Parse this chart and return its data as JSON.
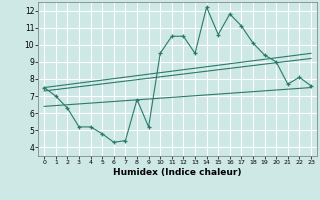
{
  "xlabel": "Humidex (Indice chaleur)",
  "bg_color": "#cde8e5",
  "line_color": "#2a7a6a",
  "grid_color": "#ffffff",
  "xlim": [
    -0.5,
    23.5
  ],
  "ylim": [
    3.5,
    12.5
  ],
  "xticks": [
    0,
    1,
    2,
    3,
    4,
    5,
    6,
    7,
    8,
    9,
    10,
    11,
    12,
    13,
    14,
    15,
    16,
    17,
    18,
    19,
    20,
    21,
    22,
    23
  ],
  "yticks": [
    4,
    5,
    6,
    7,
    8,
    9,
    10,
    11,
    12
  ],
  "main_line": {
    "x": [
      0,
      1,
      2,
      3,
      4,
      5,
      6,
      7,
      8,
      9,
      10,
      11,
      12,
      13,
      14,
      15,
      16,
      17,
      18,
      19,
      20,
      21,
      22,
      23
    ],
    "y": [
      7.5,
      7.0,
      6.3,
      5.2,
      5.2,
      4.8,
      4.3,
      4.4,
      6.8,
      5.2,
      9.5,
      10.5,
      10.5,
      9.5,
      12.2,
      10.6,
      11.8,
      11.1,
      10.1,
      9.4,
      9.0,
      7.7,
      8.1,
      7.6
    ]
  },
  "trend_line1": {
    "x": [
      0,
      23
    ],
    "y": [
      7.5,
      9.5
    ]
  },
  "trend_line2": {
    "x": [
      0,
      23
    ],
    "y": [
      7.3,
      9.2
    ]
  },
  "trend_line3": {
    "x": [
      0,
      23
    ],
    "y": [
      6.4,
      7.5
    ]
  }
}
